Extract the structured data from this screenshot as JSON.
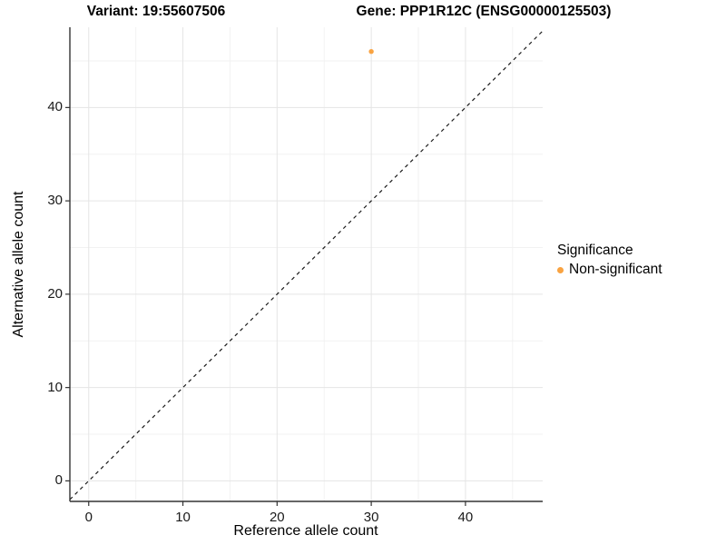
{
  "chart_data": {
    "type": "scatter",
    "title_variant": "Variant: 19:55607506",
    "title_gene": "Gene: PPP1R12C (ENSG00000125503)",
    "xlabel": "Reference allele count",
    "ylabel": "Alternative allele count",
    "xlim": [
      -2.0,
      48.2
    ],
    "ylim": [
      -2.2,
      48.6
    ],
    "x_ticks": [
      0,
      10,
      20,
      30,
      40
    ],
    "y_ticks": [
      0,
      10,
      20,
      30,
      40
    ],
    "x_minor_ticks": [
      5,
      15,
      25,
      35,
      45
    ],
    "y_minor_ticks": [
      5,
      15,
      25,
      35,
      45
    ],
    "grid": true,
    "points": [
      {
        "x": 30,
        "y": 46,
        "series": "Non-significant"
      }
    ],
    "identity_line": {
      "slope": 1,
      "intercept": 0,
      "style": "dashed"
    },
    "legend": {
      "title": "Significance",
      "position": "right",
      "items": [
        {
          "label": "Non-significant",
          "color": "#F9A341"
        }
      ]
    },
    "colors": {
      "point": "#F9A341",
      "axis_line": "#333333",
      "tick_mark": "#333333",
      "grid_major": "#E5E5E5",
      "grid_minor": "#F2F2F2",
      "dashed_line": "#1A1A1A",
      "background": "#FFFFFF"
    }
  }
}
